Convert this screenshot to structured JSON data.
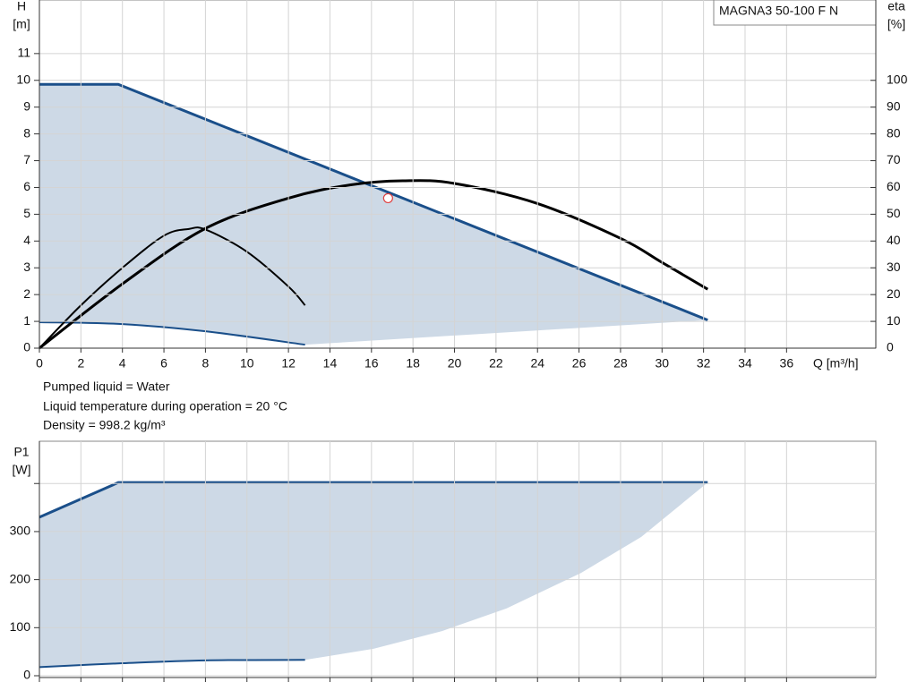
{
  "chart_data": [
    {
      "type": "line",
      "title": "MAGNA3 50-100 F N",
      "ylabel": [
        "H",
        "[m]"
      ],
      "y2label": [
        "eta",
        "[%]"
      ],
      "xlabel": "Q [m³/h]",
      "xlim": [
        0,
        40.3
      ],
      "xticks": [
        0,
        2,
        4,
        6,
        8,
        10,
        12,
        14,
        16,
        18,
        20,
        22,
        24,
        26,
        28,
        30,
        32,
        34,
        36
      ],
      "ylim": [
        0,
        13
      ],
      "yticks": [
        0,
        1,
        2,
        3,
        4,
        5,
        6,
        7,
        8,
        9,
        10,
        11
      ],
      "y2lim": [
        0,
        130
      ],
      "y2ticks": [
        0,
        10,
        20,
        30,
        40,
        50,
        60,
        70,
        80,
        90,
        100
      ],
      "grid": true,
      "series": [
        {
          "kind": "area",
          "color": "#cdd9e6",
          "x": [
            0,
            3.8,
            32.2,
            12.8,
            8,
            4,
            0
          ],
          "values": [
            9.85,
            9.85,
            1.05,
            0.13,
            0.63,
            0.9,
            0.97
          ]
        },
        {
          "kind": "line",
          "color": "#1a4f8a",
          "width": 3,
          "x": [
            0,
            3.8,
            32.2
          ],
          "values": [
            9.85,
            9.85,
            1.05
          ]
        },
        {
          "kind": "curve",
          "color": "#1a4f8a",
          "width": 2,
          "x": [
            0,
            4,
            8,
            12.8
          ],
          "values": [
            0.97,
            0.9,
            0.63,
            0.13
          ]
        },
        {
          "kind": "curve",
          "axis": "y2",
          "color": "#000000",
          "width": 3,
          "x": [
            0,
            4,
            8,
            12,
            15,
            17.5,
            20,
            24,
            28,
            30,
            32.2
          ],
          "values": [
            0,
            24,
            44.7,
            56,
            61,
            62.5,
            61.5,
            54,
            41,
            32,
            22
          ]
        },
        {
          "kind": "curve",
          "axis": "y2",
          "color": "#000000",
          "width": 2,
          "x": [
            0,
            2,
            4,
            6,
            7.2,
            8,
            10,
            12,
            12.8
          ],
          "values": [
            0,
            16,
            30,
            42,
            44.5,
            44.3,
            36,
            23,
            16
          ]
        },
        {
          "kind": "point",
          "color": "#e04040",
          "x": [
            16.8
          ],
          "values": [
            5.6
          ]
        }
      ]
    },
    {
      "type": "line",
      "ylabel": [
        "P1",
        "[W]"
      ],
      "xlim": [
        0,
        40.3
      ],
      "xticks": [
        0,
        2,
        4,
        6,
        8,
        10,
        12,
        14,
        16,
        18,
        20,
        22,
        24,
        26,
        28,
        30,
        32,
        34,
        36
      ],
      "ylim": [
        0,
        488
      ],
      "yticks": [
        0,
        100,
        200,
        300
      ],
      "minor_yticks": [
        400
      ],
      "grid": true,
      "series": [
        {
          "kind": "area",
          "color": "#cdd9e6",
          "x": [
            0,
            3.8,
            32.2,
            29,
            26.1,
            22.5,
            19.4,
            16.1,
            12.8,
            8,
            4,
            0
          ],
          "values": [
            330,
            402,
            402,
            289,
            214,
            140,
            93,
            56,
            33,
            32,
            26,
            18
          ]
        },
        {
          "kind": "line",
          "color": "#1a4f8a",
          "width": 3,
          "x": [
            0,
            3.8,
            32.2
          ],
          "values": [
            330,
            402,
            402
          ]
        },
        {
          "kind": "curve",
          "color": "#1a4f8a",
          "width": 2,
          "x": [
            0,
            4,
            8,
            12.8
          ],
          "values": [
            18,
            26,
            32,
            33
          ]
        }
      ]
    }
  ],
  "notes": [
    "Pumped liquid = Water",
    "Liquid temperature during operation = 20 °C",
    "Density = 998.2 kg/m³"
  ]
}
